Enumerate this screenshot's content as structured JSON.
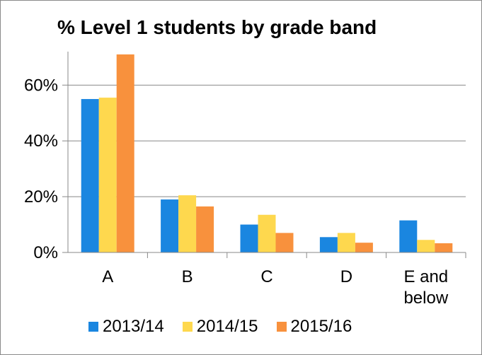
{
  "chart_data": {
    "type": "bar",
    "title": "% Level 1 students by grade band",
    "xlabel": "",
    "ylabel": "",
    "categories": [
      "A",
      "B",
      "C",
      "D",
      "E and below"
    ],
    "series": [
      {
        "name": "2013/14",
        "color": "#1a86e0",
        "values": [
          55,
          19,
          10,
          5.5,
          11.5
        ]
      },
      {
        "name": "2014/15",
        "color": "#fed84e",
        "values": [
          55.5,
          20.5,
          13.5,
          7,
          4.5
        ]
      },
      {
        "name": "2015/16",
        "color": "#f8913d",
        "values": [
          71,
          16.5,
          7,
          3.5,
          3.3
        ]
      }
    ],
    "ylim": [
      0,
      72
    ],
    "yticks": [
      0,
      20,
      40,
      60
    ],
    "ytick_labels": [
      "0%",
      "20%",
      "40%",
      "60%"
    ],
    "grid": true,
    "legend": "bottom"
  }
}
